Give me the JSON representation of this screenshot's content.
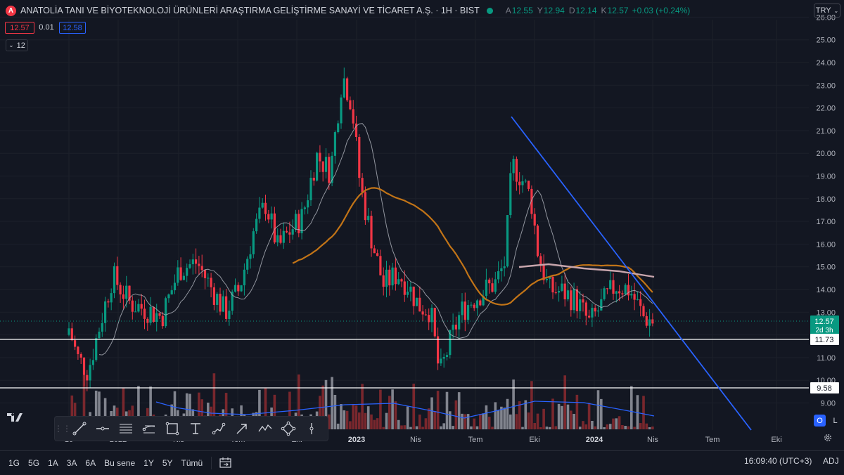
{
  "header": {
    "logo_letter": "A",
    "title": "ANATOLİA TANI VE BİYOTEKNOLOJİ ÜRÜNLERİ ARAŞTIRMA GELİŞTİRME SANAYİ VE TİCARET A.Ş. · 1H · BIST",
    "open_label": "A",
    "open_value": "12.55",
    "high_label": "Y",
    "high_value": "12.94",
    "low_label": "D",
    "low_value": "12.14",
    "close_label": "K",
    "close_value": "12.57",
    "change": "+0.03 (+0.24%)"
  },
  "trade": {
    "bid": "12.57",
    "spread": "0.01",
    "ask": "12.58"
  },
  "indicators_collapse": "12",
  "currency": "TRY",
  "colors": {
    "up": "#089981",
    "down": "#f23645",
    "bg": "#131722",
    "trendline": "#2962ff",
    "ma_orange": "#c27417",
    "ma_white": "#b2b5be",
    "ma_pink": "#c8a6ad"
  },
  "price_axis": {
    "ticks": [
      "26.00",
      "25.00",
      "24.00",
      "23.00",
      "22.00",
      "21.00",
      "20.00",
      "19.00",
      "18.00",
      "17.00",
      "16.00",
      "15.00",
      "14.00",
      "13.00",
      "12.00",
      "11.00",
      "10.00",
      "9.00"
    ],
    "last_price_tag": "12.57",
    "countdown_tag": "2d 3h",
    "hline_labels": [
      "11.73",
      "9.58"
    ]
  },
  "time_axis": {
    "labels": [
      "10",
      "2022",
      "Nis",
      "Tem",
      "Eki",
      "2023",
      "Nis",
      "Tem",
      "Eki",
      "2024",
      "Nis",
      "Tem",
      "Eki"
    ]
  },
  "drawing_tools": [
    "grip-handle",
    "trend-line-tool",
    "horizontal-ray-tool",
    "parallel-channel-tool",
    "fib-retracement-tool",
    "rectangle-tool",
    "text-tool",
    "path-tool",
    "arrow-tool",
    "zigzag-tool",
    "pattern-tool",
    "long-position-tool"
  ],
  "price_scale_toggle": {
    "o": "O",
    "l": "L"
  },
  "bottom": {
    "ranges": [
      "1G",
      "5G",
      "1A",
      "3A",
      "6A",
      "Bu sene",
      "1Y",
      "5Y",
      "Tümü"
    ],
    "clock": "16:09:40 (UTC+3)",
    "adj": "ADJ"
  }
}
